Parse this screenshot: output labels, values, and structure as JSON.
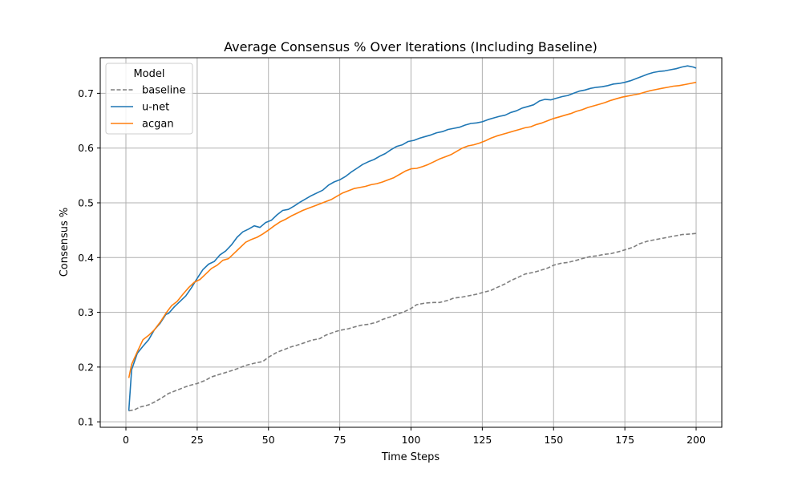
{
  "chart_data": {
    "type": "line",
    "title": "Average Consensus % Over Iterations (Including Baseline)",
    "xlabel": "Time Steps",
    "ylabel": "Consensus %",
    "xlim": [
      -9,
      209
    ],
    "ylim": [
      0.09,
      0.765
    ],
    "xticks": [
      0,
      25,
      50,
      75,
      100,
      125,
      150,
      175,
      200
    ],
    "yticks": [
      0.1,
      0.2,
      0.3,
      0.4,
      0.5,
      0.6,
      0.7
    ],
    "grid": true,
    "legend": {
      "title": "Model",
      "position": "top-left"
    },
    "series": [
      {
        "name": "baseline",
        "color": "#7f7f7f",
        "dash": "dashed",
        "points": [
          [
            1,
            0.12
          ],
          [
            3,
            0.122
          ],
          [
            5,
            0.127
          ],
          [
            8,
            0.131
          ],
          [
            10,
            0.136
          ],
          [
            12,
            0.142
          ],
          [
            15,
            0.152
          ],
          [
            18,
            0.158
          ],
          [
            20,
            0.162
          ],
          [
            22,
            0.166
          ],
          [
            25,
            0.17
          ],
          [
            28,
            0.176
          ],
          [
            30,
            0.182
          ],
          [
            33,
            0.187
          ],
          [
            35,
            0.19
          ],
          [
            38,
            0.195
          ],
          [
            40,
            0.199
          ],
          [
            42,
            0.203
          ],
          [
            45,
            0.207
          ],
          [
            48,
            0.21
          ],
          [
            50,
            0.218
          ],
          [
            53,
            0.227
          ],
          [
            55,
            0.231
          ],
          [
            58,
            0.237
          ],
          [
            60,
            0.24
          ],
          [
            63,
            0.245
          ],
          [
            65,
            0.249
          ],
          [
            68,
            0.252
          ],
          [
            70,
            0.258
          ],
          [
            73,
            0.264
          ],
          [
            75,
            0.267
          ],
          [
            78,
            0.27
          ],
          [
            80,
            0.273
          ],
          [
            83,
            0.277
          ],
          [
            85,
            0.278
          ],
          [
            88,
            0.282
          ],
          [
            90,
            0.287
          ],
          [
            93,
            0.292
          ],
          [
            95,
            0.296
          ],
          [
            98,
            0.302
          ],
          [
            100,
            0.307
          ],
          [
            102,
            0.314
          ],
          [
            105,
            0.317
          ],
          [
            108,
            0.318
          ],
          [
            110,
            0.318
          ],
          [
            113,
            0.322
          ],
          [
            115,
            0.326
          ],
          [
            118,
            0.328
          ],
          [
            120,
            0.33
          ],
          [
            123,
            0.333
          ],
          [
            125,
            0.336
          ],
          [
            128,
            0.34
          ],
          [
            130,
            0.345
          ],
          [
            133,
            0.352
          ],
          [
            135,
            0.358
          ],
          [
            138,
            0.365
          ],
          [
            140,
            0.37
          ],
          [
            143,
            0.373
          ],
          [
            145,
            0.376
          ],
          [
            148,
            0.381
          ],
          [
            150,
            0.386
          ],
          [
            153,
            0.39
          ],
          [
            155,
            0.391
          ],
          [
            158,
            0.395
          ],
          [
            160,
            0.398
          ],
          [
            163,
            0.402
          ],
          [
            165,
            0.403
          ],
          [
            168,
            0.406
          ],
          [
            170,
            0.407
          ],
          [
            173,
            0.411
          ],
          [
            175,
            0.414
          ],
          [
            178,
            0.419
          ],
          [
            180,
            0.425
          ],
          [
            183,
            0.43
          ],
          [
            185,
            0.432
          ],
          [
            188,
            0.435
          ],
          [
            190,
            0.437
          ],
          [
            193,
            0.44
          ],
          [
            195,
            0.442
          ],
          [
            198,
            0.443
          ],
          [
            200,
            0.444
          ]
        ]
      },
      {
        "name": "u-net",
        "color": "#1f77b4",
        "dash": "solid",
        "points": [
          [
            1,
            0.12
          ],
          [
            2,
            0.195
          ],
          [
            4,
            0.225
          ],
          [
            6,
            0.238
          ],
          [
            8,
            0.25
          ],
          [
            10,
            0.268
          ],
          [
            12,
            0.28
          ],
          [
            14,
            0.296
          ],
          [
            15,
            0.298
          ],
          [
            17,
            0.31
          ],
          [
            19,
            0.32
          ],
          [
            21,
            0.33
          ],
          [
            23,
            0.345
          ],
          [
            25,
            0.362
          ],
          [
            27,
            0.378
          ],
          [
            29,
            0.388
          ],
          [
            31,
            0.393
          ],
          [
            33,
            0.405
          ],
          [
            35,
            0.412
          ],
          [
            37,
            0.423
          ],
          [
            39,
            0.437
          ],
          [
            41,
            0.447
          ],
          [
            43,
            0.452
          ],
          [
            45,
            0.458
          ],
          [
            47,
            0.455
          ],
          [
            49,
            0.464
          ],
          [
            51,
            0.468
          ],
          [
            53,
            0.478
          ],
          [
            55,
            0.486
          ],
          [
            57,
            0.488
          ],
          [
            59,
            0.494
          ],
          [
            61,
            0.501
          ],
          [
            63,
            0.507
          ],
          [
            65,
            0.513
          ],
          [
            67,
            0.518
          ],
          [
            69,
            0.523
          ],
          [
            71,
            0.532
          ],
          [
            73,
            0.538
          ],
          [
            75,
            0.542
          ],
          [
            77,
            0.548
          ],
          [
            79,
            0.556
          ],
          [
            81,
            0.563
          ],
          [
            83,
            0.57
          ],
          [
            85,
            0.575
          ],
          [
            87,
            0.579
          ],
          [
            89,
            0.585
          ],
          [
            91,
            0.59
          ],
          [
            93,
            0.597
          ],
          [
            95,
            0.603
          ],
          [
            97,
            0.606
          ],
          [
            99,
            0.612
          ],
          [
            101,
            0.614
          ],
          [
            103,
            0.618
          ],
          [
            105,
            0.621
          ],
          [
            107,
            0.624
          ],
          [
            109,
            0.628
          ],
          [
            111,
            0.63
          ],
          [
            113,
            0.634
          ],
          [
            115,
            0.636
          ],
          [
            117,
            0.638
          ],
          [
            119,
            0.642
          ],
          [
            121,
            0.645
          ],
          [
            123,
            0.646
          ],
          [
            125,
            0.648
          ],
          [
            127,
            0.652
          ],
          [
            129,
            0.655
          ],
          [
            131,
            0.658
          ],
          [
            133,
            0.66
          ],
          [
            135,
            0.665
          ],
          [
            137,
            0.668
          ],
          [
            139,
            0.673
          ],
          [
            141,
            0.676
          ],
          [
            143,
            0.679
          ],
          [
            145,
            0.686
          ],
          [
            147,
            0.689
          ],
          [
            149,
            0.688
          ],
          [
            151,
            0.691
          ],
          [
            153,
            0.694
          ],
          [
            155,
            0.696
          ],
          [
            157,
            0.7
          ],
          [
            159,
            0.704
          ],
          [
            161,
            0.706
          ],
          [
            163,
            0.709
          ],
          [
            165,
            0.711
          ],
          [
            167,
            0.712
          ],
          [
            169,
            0.714
          ],
          [
            171,
            0.717
          ],
          [
            173,
            0.718
          ],
          [
            175,
            0.72
          ],
          [
            177,
            0.723
          ],
          [
            179,
            0.727
          ],
          [
            181,
            0.731
          ],
          [
            183,
            0.735
          ],
          [
            185,
            0.738
          ],
          [
            187,
            0.74
          ],
          [
            189,
            0.741
          ],
          [
            191,
            0.743
          ],
          [
            193,
            0.745
          ],
          [
            195,
            0.748
          ],
          [
            197,
            0.75
          ],
          [
            199,
            0.748
          ],
          [
            200,
            0.746
          ]
        ]
      },
      {
        "name": "acgan",
        "color": "#ff7f0e",
        "dash": "solid",
        "points": [
          [
            1,
            0.18
          ],
          [
            2,
            0.205
          ],
          [
            4,
            0.228
          ],
          [
            6,
            0.25
          ],
          [
            8,
            0.258
          ],
          [
            10,
            0.268
          ],
          [
            12,
            0.282
          ],
          [
            14,
            0.298
          ],
          [
            16,
            0.312
          ],
          [
            18,
            0.32
          ],
          [
            20,
            0.333
          ],
          [
            22,
            0.345
          ],
          [
            24,
            0.355
          ],
          [
            26,
            0.36
          ],
          [
            28,
            0.37
          ],
          [
            30,
            0.38
          ],
          [
            32,
            0.386
          ],
          [
            34,
            0.395
          ],
          [
            36,
            0.398
          ],
          [
            38,
            0.408
          ],
          [
            40,
            0.418
          ],
          [
            42,
            0.428
          ],
          [
            44,
            0.433
          ],
          [
            46,
            0.437
          ],
          [
            48,
            0.443
          ],
          [
            50,
            0.45
          ],
          [
            52,
            0.458
          ],
          [
            54,
            0.465
          ],
          [
            56,
            0.47
          ],
          [
            58,
            0.476
          ],
          [
            60,
            0.481
          ],
          [
            62,
            0.486
          ],
          [
            64,
            0.49
          ],
          [
            66,
            0.494
          ],
          [
            68,
            0.498
          ],
          [
            70,
            0.502
          ],
          [
            72,
            0.506
          ],
          [
            74,
            0.512
          ],
          [
            76,
            0.518
          ],
          [
            78,
            0.522
          ],
          [
            80,
            0.526
          ],
          [
            82,
            0.528
          ],
          [
            84,
            0.53
          ],
          [
            86,
            0.533
          ],
          [
            88,
            0.535
          ],
          [
            90,
            0.538
          ],
          [
            92,
            0.542
          ],
          [
            94,
            0.546
          ],
          [
            96,
            0.552
          ],
          [
            98,
            0.558
          ],
          [
            100,
            0.562
          ],
          [
            102,
            0.563
          ],
          [
            104,
            0.566
          ],
          [
            106,
            0.57
          ],
          [
            108,
            0.575
          ],
          [
            110,
            0.58
          ],
          [
            112,
            0.584
          ],
          [
            114,
            0.588
          ],
          [
            116,
            0.594
          ],
          [
            118,
            0.6
          ],
          [
            120,
            0.604
          ],
          [
            122,
            0.606
          ],
          [
            124,
            0.609
          ],
          [
            126,
            0.613
          ],
          [
            128,
            0.618
          ],
          [
            130,
            0.622
          ],
          [
            132,
            0.625
          ],
          [
            134,
            0.628
          ],
          [
            136,
            0.631
          ],
          [
            138,
            0.634
          ],
          [
            140,
            0.637
          ],
          [
            142,
            0.639
          ],
          [
            144,
            0.643
          ],
          [
            146,
            0.646
          ],
          [
            148,
            0.65
          ],
          [
            150,
            0.654
          ],
          [
            152,
            0.657
          ],
          [
            154,
            0.66
          ],
          [
            156,
            0.663
          ],
          [
            158,
            0.667
          ],
          [
            160,
            0.67
          ],
          [
            162,
            0.674
          ],
          [
            164,
            0.677
          ],
          [
            166,
            0.68
          ],
          [
            168,
            0.683
          ],
          [
            170,
            0.687
          ],
          [
            172,
            0.69
          ],
          [
            174,
            0.693
          ],
          [
            176,
            0.695
          ],
          [
            178,
            0.697
          ],
          [
            180,
            0.699
          ],
          [
            182,
            0.702
          ],
          [
            184,
            0.705
          ],
          [
            186,
            0.707
          ],
          [
            188,
            0.709
          ],
          [
            190,
            0.711
          ],
          [
            192,
            0.713
          ],
          [
            194,
            0.714
          ],
          [
            196,
            0.716
          ],
          [
            198,
            0.718
          ],
          [
            200,
            0.72
          ]
        ]
      }
    ]
  }
}
